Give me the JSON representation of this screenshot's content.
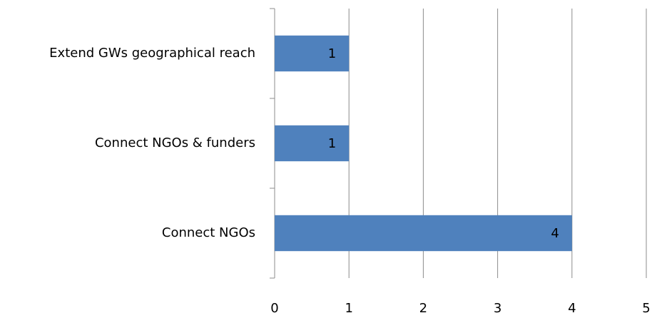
{
  "chart_data": {
    "type": "bar",
    "orientation": "horizontal",
    "categories": [
      "Extend GWs geographical reach",
      "Connect NGOs & funders",
      "Connect NGOs"
    ],
    "values": [
      1,
      1,
      4
    ],
    "color": "#4f81bd",
    "xlim": [
      0,
      5
    ],
    "xticks": [
      0,
      1,
      2,
      3,
      4,
      5
    ],
    "grid": true,
    "data_labels": true
  }
}
